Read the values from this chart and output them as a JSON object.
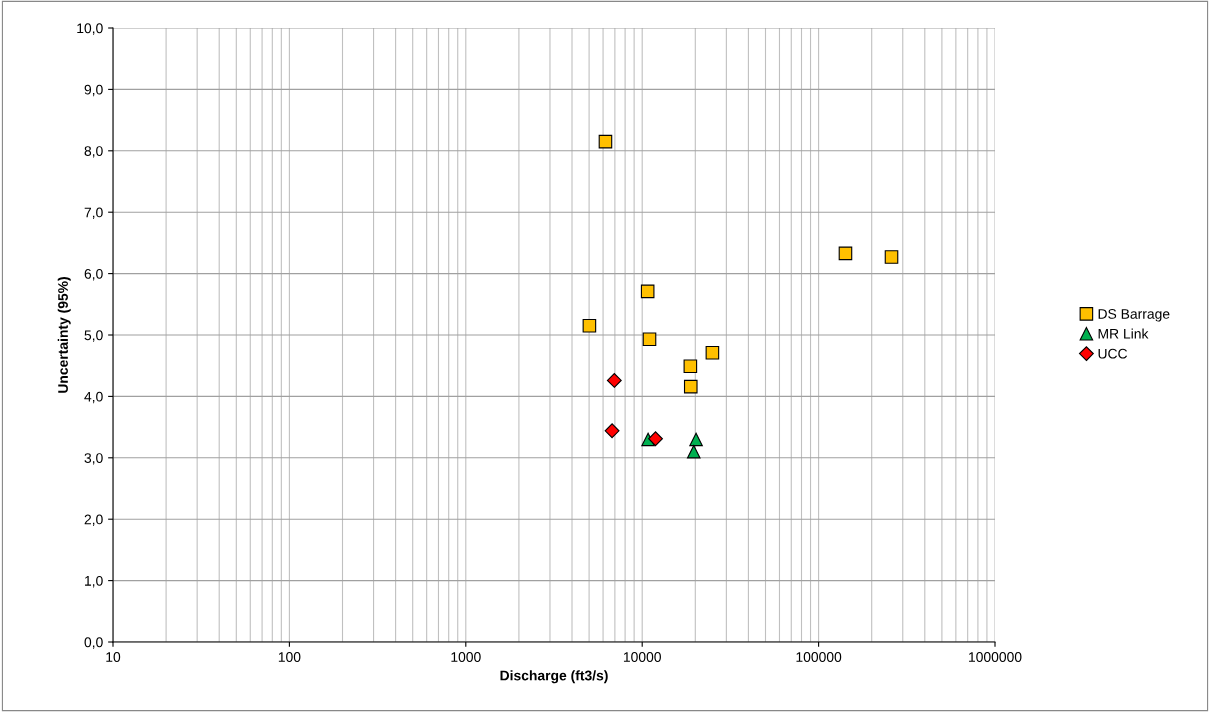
{
  "chart_data": {
    "type": "scatter",
    "xlabel": "Discharge (ft3/s)",
    "ylabel": "Uncertainty (95%)",
    "series": [
      {
        "name": "DS Barrage",
        "color": "#ffc000",
        "marker": "square",
        "x": [
          6190,
          5020,
          10740,
          11000,
          18750,
          18850,
          25000,
          142000,
          259000
        ],
        "values": [
          8.15,
          5.15,
          5.71,
          4.93,
          4.49,
          4.16,
          4.71,
          6.33,
          6.27
        ]
      },
      {
        "name": "MR Link",
        "color": "#00b050",
        "marker": "triangle",
        "x": [
          10800,
          20200,
          19600
        ],
        "values": [
          3.3,
          3.3,
          3.1
        ]
      },
      {
        "name": "UCC",
        "color": "#ff0000",
        "marker": "diamond",
        "x": [
          6950,
          6750,
          11900
        ],
        "values": [
          4.26,
          3.44,
          3.31
        ]
      }
    ],
    "log": "x",
    "xlim": [
      10,
      1000000
    ],
    "xticks": [
      10,
      100,
      1000,
      10000,
      100000,
      1000000
    ],
    "ylim": [
      0,
      10
    ],
    "yticks": [
      {
        "value": 0,
        "label": "0,0"
      },
      {
        "value": 1,
        "label": "1,0"
      },
      {
        "value": 2,
        "label": "2,0"
      },
      {
        "value": 3,
        "label": "3,0"
      },
      {
        "value": 4,
        "label": "4,0"
      },
      {
        "value": 5,
        "label": "5,0"
      },
      {
        "value": 6,
        "label": "6,0"
      },
      {
        "value": 7,
        "label": "7,0"
      },
      {
        "value": 8,
        "label": "8,0"
      },
      {
        "value": 9,
        "label": "9,0"
      },
      {
        "value": 10,
        "label": "10,0"
      }
    ],
    "grid": true,
    "legend": "right"
  }
}
